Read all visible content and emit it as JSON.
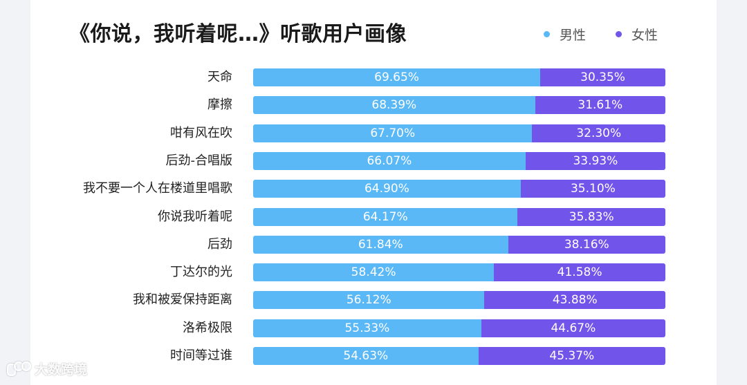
{
  "chart_data": {
    "type": "bar",
    "orientation": "horizontal",
    "stacked": true,
    "percent": true,
    "title": "《你说，我听着呢…》听歌用户画像",
    "legend_position": "top-right",
    "categories": [
      "天命",
      "摩擦",
      "咁有风在吹",
      "后劲-合唱版",
      "我不要一个人在楼道里唱歌",
      "你说我听着呢",
      "后劲",
      "丁达尔的光",
      "我和被爱保持距离",
      "洛希极限",
      "时间等过谁"
    ],
    "series": [
      {
        "name": "男性",
        "color": "#5ab8f7",
        "values": [
          69.65,
          68.39,
          67.7,
          66.07,
          64.9,
          64.17,
          61.84,
          58.42,
          56.12,
          55.33,
          54.63
        ],
        "labels": [
          "69.65%",
          "68.39%",
          "67.70%",
          "66.07%",
          "64.90%",
          "64.17%",
          "61.84%",
          "58.42%",
          "56.12%",
          "55.33%",
          "54.63%"
        ]
      },
      {
        "name": "女性",
        "color": "#7155eb",
        "values": [
          30.35,
          31.61,
          32.3,
          33.93,
          35.1,
          35.83,
          38.16,
          41.58,
          43.88,
          44.67,
          45.37
        ],
        "labels": [
          "30.35%",
          "31.61%",
          "32.30%",
          "33.93%",
          "35.10%",
          "35.83%",
          "38.16%",
          "41.58%",
          "43.88%",
          "44.67%",
          "45.37%"
        ]
      }
    ]
  },
  "watermark": {
    "text": "大数跨境",
    "icon": "watermark-logo-icon"
  }
}
